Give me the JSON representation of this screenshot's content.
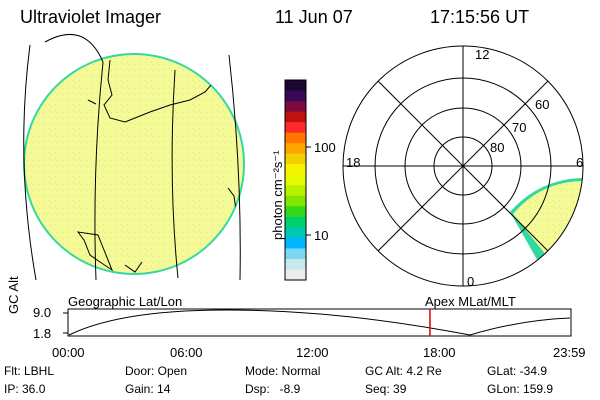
{
  "header": {
    "instrument": "Ultraviolet Imager",
    "date": "11 Jun 07",
    "time": "17:15:56 UT"
  },
  "colorbar": {
    "unit_label": "photon cm⁻²s⁻¹",
    "ticks": [
      "100",
      "10"
    ],
    "colors": [
      "#1a0830",
      "#3a0858",
      "#7a0a40",
      "#c01010",
      "#ff2a2a",
      "#ff7700",
      "#ffa500",
      "#f5d000",
      "#f8f400",
      "#e6fa00",
      "#b8f000",
      "#7ee600",
      "#33d81a",
      "#00d06a",
      "#00c8b4",
      "#00b4ff",
      "#7ad8f0",
      "#c8e8ec",
      "#ececec"
    ]
  },
  "polar_plot": {
    "mlt_labels": {
      "top": "12",
      "left": "18",
      "right": "6",
      "bottom": "0"
    },
    "lat_labels": [
      "60",
      "70",
      "80"
    ]
  },
  "timeline": {
    "ylabel": "GC Alt",
    "yticks": [
      "9.0",
      "1.8"
    ],
    "left_caption": "Geographic Lat/Lon",
    "right_caption": "Apex MLat/MLT",
    "xticks": [
      "00:00",
      "06:00",
      "12:00",
      "18:00",
      "23:59"
    ],
    "marker_hour": 17.27,
    "marker_color": "#e00000"
  },
  "status": {
    "flt": "Flt: LBHL",
    "ip": "IP: 36.0",
    "door": "Door: Open",
    "gain": "Gain: 14",
    "mode": "Mode: Normal",
    "dsp": "Dsp:   -8.9",
    "gc_alt": "GC Alt: 4.2 Re",
    "seq": "Seq: 39",
    "glat": "GLat: -34.9",
    "glon": "GLon: 159.9"
  },
  "colors": {
    "earth_fill": "#f4fa9a",
    "earth_rim": "#33d8a0",
    "line": "#000000"
  }
}
